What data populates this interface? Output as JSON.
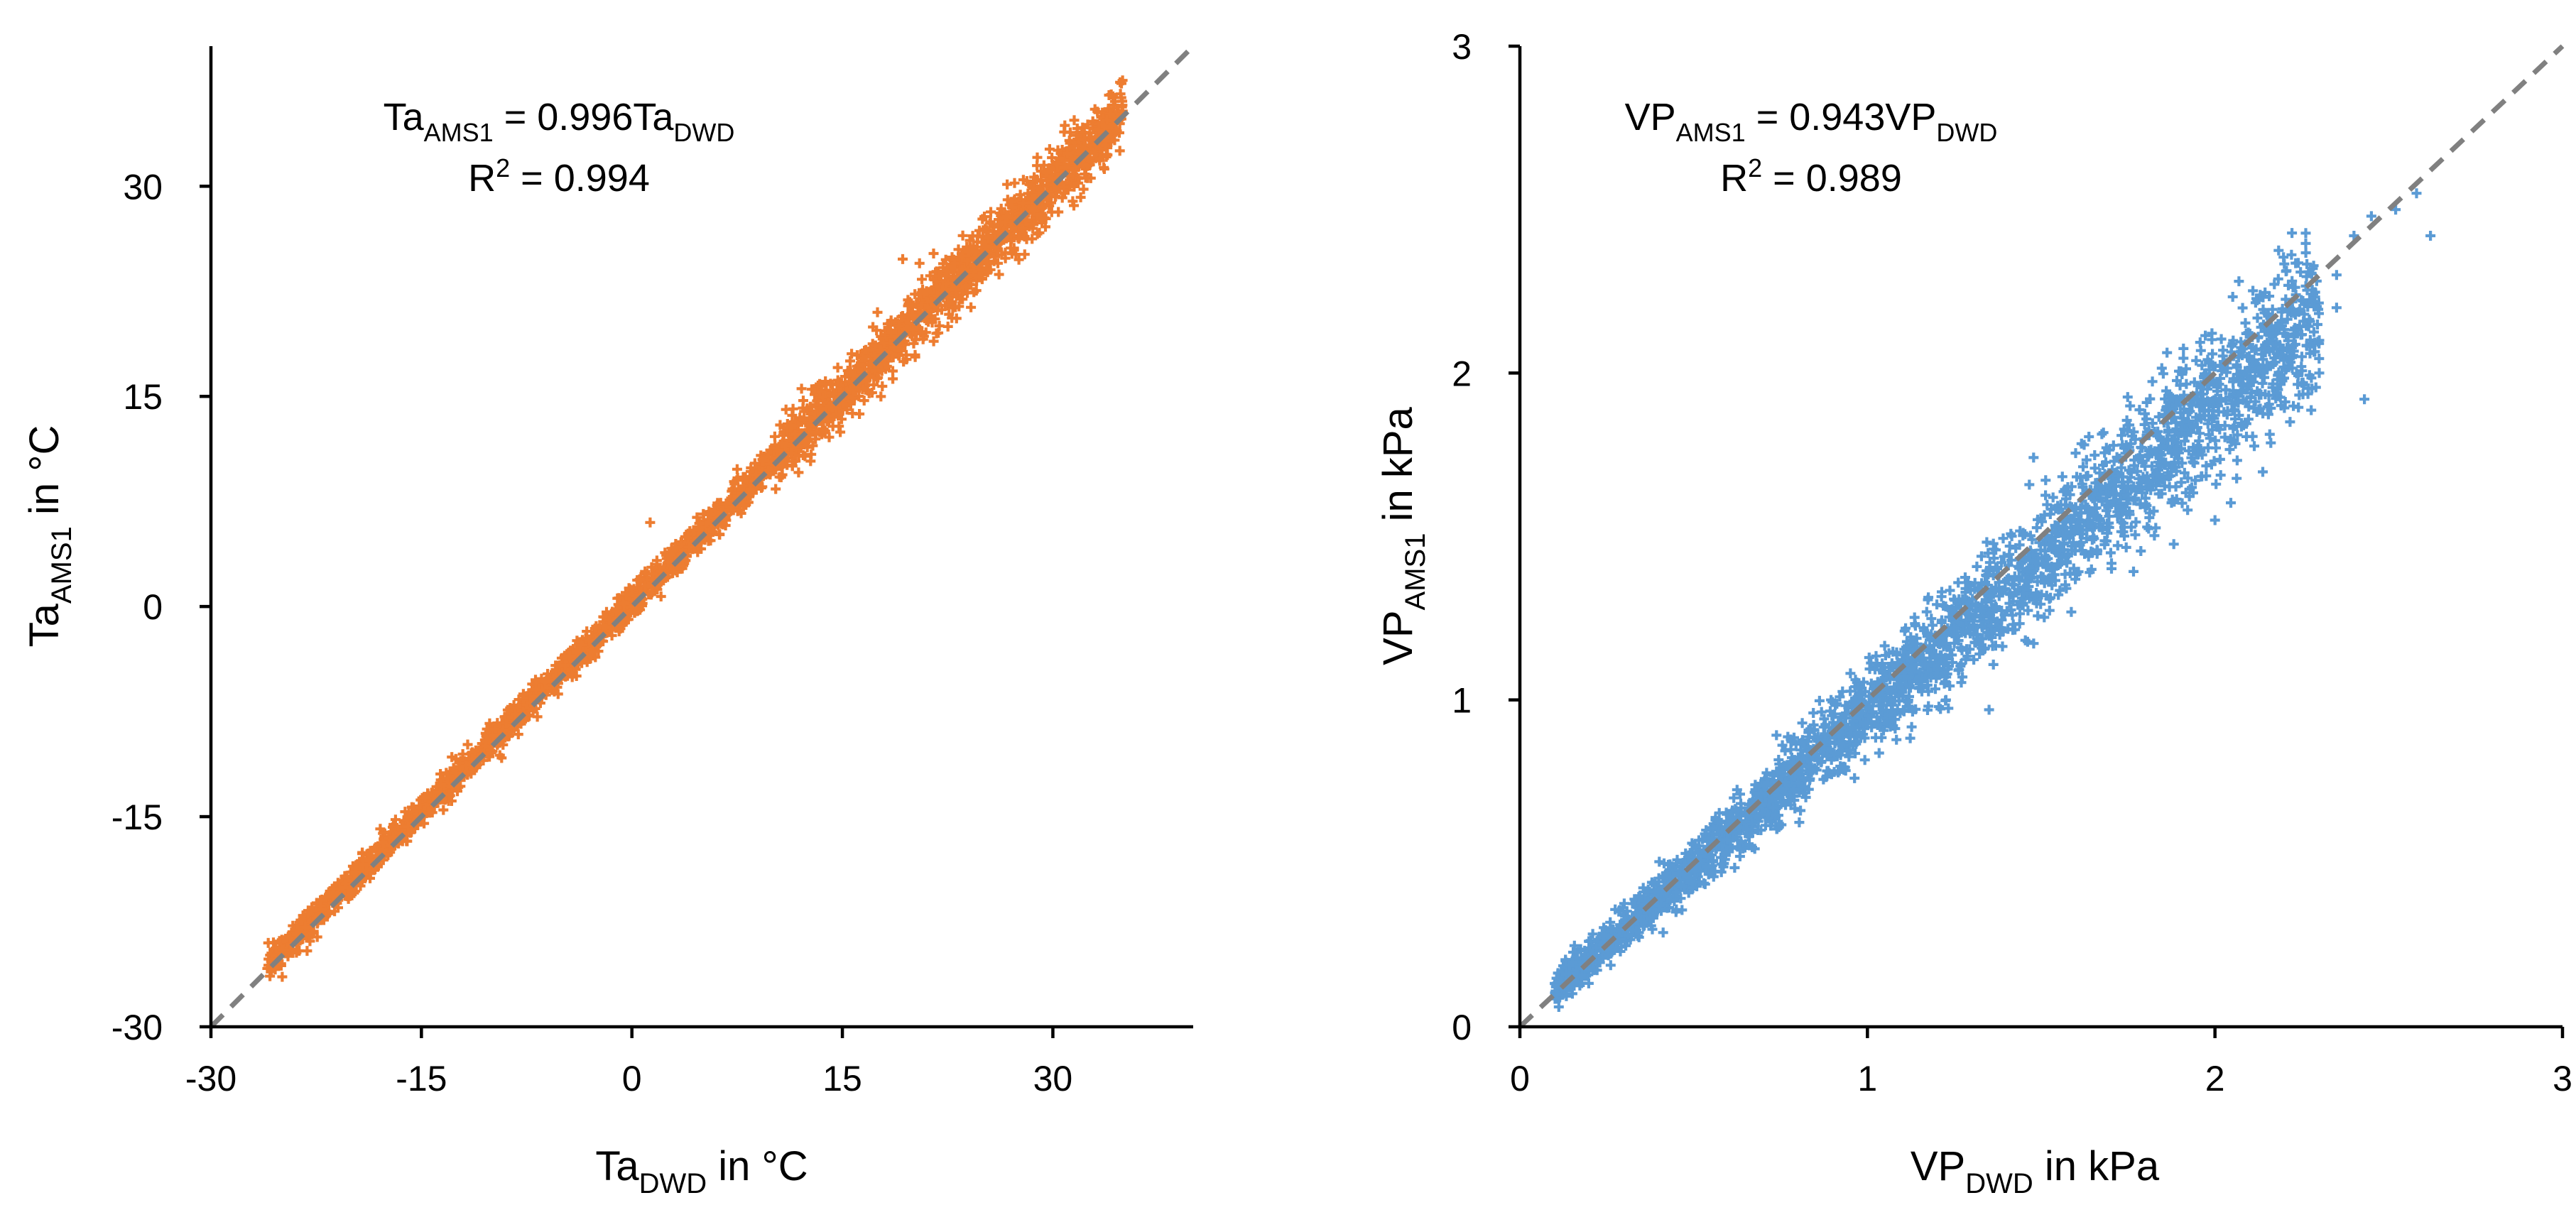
{
  "chart_data": [
    {
      "type": "scatter",
      "marker": "plus",
      "color": "#ED7D31",
      "xlabel_main": "Ta",
      "xlabel_sub": "DWD",
      "xlabel_unit": " in °C",
      "ylabel_main": "Ta",
      "ylabel_sub": "AMS1",
      "ylabel_unit": " in °C",
      "xlim": [
        -30,
        40
      ],
      "ylim": [
        -30,
        40
      ],
      "xticks": [
        -30,
        -15,
        0,
        15,
        30
      ],
      "yticks": [
        -30,
        -15,
        0,
        15,
        30
      ],
      "xtick_labels": [
        "-30",
        "-15",
        "0",
        "15",
        "30"
      ],
      "ytick_labels": [
        "-30",
        "-15",
        "0",
        "15",
        "30"
      ],
      "equation": {
        "lhs_main": "Ta",
        "lhs_sub": "AMS1",
        "middle": " = 0.996Ta",
        "rhs_sub": "DWD"
      },
      "r2": {
        "main": "R",
        "sup": "2",
        "rest": " = 0.994"
      },
      "reference_line": {
        "slope": 1,
        "intercept": 0,
        "style": "dashed",
        "color": "#808080"
      },
      "fit": {
        "slope": 0.996,
        "r2": 0.994
      },
      "series_range": {
        "x": [
          -26,
          35
        ],
        "y": [
          -26,
          36
        ]
      }
    },
    {
      "type": "scatter",
      "marker": "plus",
      "color": "#5B9BD5",
      "xlabel_main": "VP",
      "xlabel_sub": "DWD",
      "xlabel_unit": " in kPa",
      "ylabel_main": "VP",
      "ylabel_sub": "AMS1",
      "ylabel_unit": " in kPa",
      "xlim": [
        0,
        3
      ],
      "ylim": [
        0,
        3
      ],
      "xticks": [
        0,
        1,
        2,
        3
      ],
      "yticks": [
        0,
        1,
        2,
        3
      ],
      "xtick_labels": [
        "0",
        "1",
        "2",
        "3"
      ],
      "ytick_labels": [
        "0",
        "1",
        "2",
        "3"
      ],
      "equation": {
        "lhs_main": "VP",
        "lhs_sub": "AMS1",
        "middle": " = 0.943VP",
        "rhs_sub": "DWD"
      },
      "r2": {
        "main": "R",
        "sup": "2",
        "rest": " = 0.989"
      },
      "reference_line": {
        "slope": 1,
        "intercept": 0,
        "style": "dashed",
        "color": "#808080"
      },
      "fit": {
        "slope": 0.943,
        "r2": 0.989
      },
      "series_range": {
        "x": [
          0.1,
          2.65
        ],
        "y": [
          0.09,
          2.55
        ]
      }
    }
  ]
}
